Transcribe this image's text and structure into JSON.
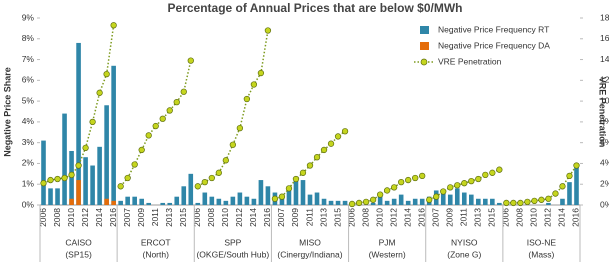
{
  "chart_data": {
    "type": "bar",
    "title": "Percentage of Annual Prices that are below $0/MWh",
    "ylabel": "Negative Price Share",
    "y2label": "VRE Penetration",
    "groups": [
      {
        "name": "CAISO",
        "sub": "(SP15)"
      },
      {
        "name": "ERCOT",
        "sub": "(North)"
      },
      {
        "name": "SPP",
        "sub": "(OKGE/South Hub)"
      },
      {
        "name": "MISO",
        "sub": "(Cinergy/Indiana)"
      },
      {
        "name": "PJM",
        "sub": "(Western)"
      },
      {
        "name": "NYISO",
        "sub": "(Zone G)"
      },
      {
        "name": "ISO-NE",
        "sub": "(Mass)"
      }
    ],
    "categories": [
      "2006",
      null,
      "2008",
      null,
      "2010",
      null,
      "2012",
      null,
      "2014",
      null,
      "2016",
      null,
      "2007",
      null,
      "2009",
      null,
      "2011",
      null,
      "2013",
      null,
      "2015",
      null,
      "2006",
      null,
      "2008",
      null,
      "2010",
      null,
      "2012",
      null,
      "2014",
      null,
      "2016",
      null,
      "2007",
      null,
      "2009",
      null,
      "2011",
      null,
      "2013",
      null,
      "2015",
      null,
      "2006",
      null,
      "2008",
      null,
      "2010",
      null,
      "2012",
      null,
      "2014",
      null,
      "2016",
      null,
      "2007",
      null,
      "2009",
      null,
      "2011",
      null,
      "2013",
      null,
      "2015",
      null,
      "2006",
      null,
      "2008",
      null,
      "2010",
      null,
      "2012",
      null,
      "2014",
      null,
      "2016"
    ],
    "series": [
      {
        "name": "Negative Price Frequency RT",
        "color": "#2f86a8",
        "kind": "bar",
        "values": [
          3.1,
          0.8,
          0.8,
          4.4,
          2.6,
          7.8,
          2.3,
          1.9,
          2.8,
          4.8,
          6.7,
          0.2,
          0.4,
          0.4,
          0.3,
          0.1,
          0,
          0.1,
          0.1,
          0.4,
          0.9,
          1.5,
          0.1,
          0.6,
          0.4,
          0.3,
          0.2,
          0.4,
          0.6,
          0.4,
          0.3,
          1.2,
          0.9,
          0.6,
          0.4,
          0.8,
          1.3,
          1.2,
          0.5,
          0.6,
          0.3,
          0.2,
          0.2,
          0.2,
          0.1,
          0,
          0,
          0.1,
          0.4,
          0.2,
          0.3,
          0.5,
          0.2,
          0.3,
          0.3,
          0.4,
          0.7,
          0.6,
          0.5,
          0.8,
          0.6,
          0.5,
          0.3,
          0.3,
          0.3,
          0.1,
          0,
          0,
          0,
          0,
          0,
          0,
          0.1,
          0,
          0.3,
          1.1,
          1.9
        ]
      },
      {
        "name": "Negative Price Frequency DA",
        "color": "#e46c0a",
        "kind": "bar",
        "values": [
          0,
          0,
          0,
          0,
          0.3,
          1.2,
          0,
          0,
          0,
          0.3,
          0.2,
          0,
          0,
          0,
          0,
          0,
          0,
          0,
          0,
          0,
          0,
          0,
          0,
          0,
          0,
          0,
          0,
          0,
          0,
          0,
          0,
          0,
          0,
          0,
          0,
          0,
          0,
          0,
          0,
          0,
          0,
          0,
          0,
          0,
          0,
          0,
          0,
          0,
          0,
          0,
          0,
          0,
          0,
          0,
          0,
          0,
          0,
          0,
          0,
          0,
          0,
          0,
          0,
          0,
          0,
          0,
          0,
          0,
          0,
          0,
          0,
          0,
          0,
          0,
          0,
          0,
          0
        ]
      },
      {
        "name": "VRE Penetration",
        "color": "#c5d51e",
        "kind": "line",
        "axis": "y2",
        "values": [
          2.1,
          2.4,
          2.5,
          2.6,
          2.9,
          3.8,
          5.5,
          8.0,
          10.8,
          12.6,
          17.3,
          1.8,
          2.6,
          3.9,
          5.3,
          6.7,
          7.6,
          8.3,
          9.1,
          9.9,
          10.9,
          13.9,
          1.8,
          2.2,
          2.6,
          3.1,
          4.3,
          5.8,
          7.4,
          10.2,
          11.6,
          12.7,
          16.8,
          0.6,
          0.8,
          1.6,
          2.5,
          3.1,
          3.8,
          4.6,
          5.3,
          5.9,
          6.6,
          7.1,
          0.1,
          0.2,
          0.3,
          0.5,
          1.0,
          1.4,
          1.7,
          2.2,
          2.4,
          2.6,
          2.8,
          0.5,
          0.8,
          1.3,
          1.7,
          1.9,
          2.1,
          2.3,
          2.5,
          2.9,
          3.1,
          3.4,
          0.2,
          0.2,
          0.2,
          0.3,
          0.4,
          0.5,
          0.6,
          1.1,
          1.8,
          2.8,
          3.8
        ]
      }
    ],
    "ylim": [
      0,
      9
    ],
    "yticks": [
      {
        "value": 0,
        "label": "0%"
      },
      {
        "value": 1,
        "label": "1%"
      },
      {
        "value": 2,
        "label": "2%"
      },
      {
        "value": 3,
        "label": "3%"
      },
      {
        "value": 4,
        "label": "4%"
      },
      {
        "value": 5,
        "label": "5%"
      },
      {
        "value": 6,
        "label": "6%"
      },
      {
        "value": 7,
        "label": "7%"
      },
      {
        "value": 8,
        "label": "8%"
      },
      {
        "value": 9,
        "label": "9%"
      }
    ],
    "y2lim": [
      0,
      18
    ],
    "y2ticks": [
      {
        "value": 0,
        "label": "0%"
      },
      {
        "value": 2,
        "label": "2%"
      },
      {
        "value": 4,
        "label": "4%"
      },
      {
        "value": 6,
        "label": "6%"
      },
      {
        "value": 8,
        "label": "8%"
      },
      {
        "value": 10,
        "label": "10%"
      },
      {
        "value": 12,
        "label": "12%"
      },
      {
        "value": 14,
        "label": "14%"
      },
      {
        "value": 16,
        "label": "16%"
      },
      {
        "value": 18,
        "label": "18%"
      }
    ],
    "legend": "top-right"
  }
}
